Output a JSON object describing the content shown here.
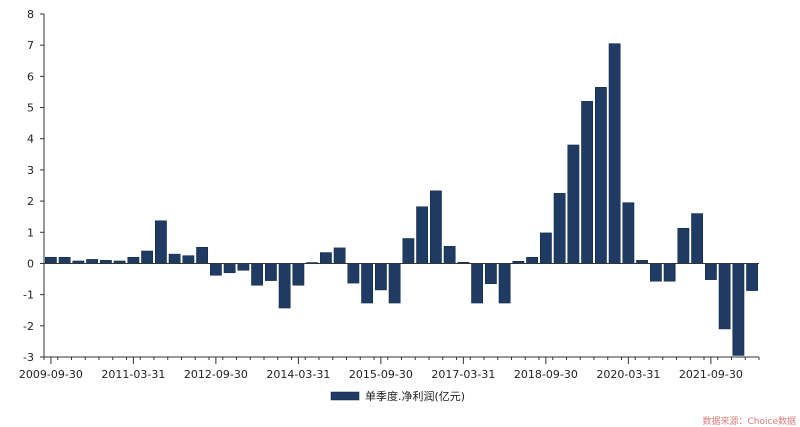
{
  "chart_data": {
    "type": "bar",
    "legend": "单季度.净利润(亿元)",
    "legend_position": "bottom-center",
    "source": "数据来源：Choice数据",
    "color": "#1f3b63",
    "ylim": [
      -3,
      8
    ],
    "yticks": [
      -3,
      -2,
      -1,
      0,
      1,
      2,
      3,
      4,
      5,
      6,
      7,
      8
    ],
    "xtick_labels": [
      "2009-09-30",
      "2011-03-31",
      "2012-09-30",
      "2014-03-31",
      "2015-09-30",
      "2017-03-31",
      "2018-09-30",
      "2020-03-31",
      "2021-09-30"
    ],
    "categories": [
      "2009-09-30",
      "2009-12-31",
      "2010-03-31",
      "2010-06-30",
      "2010-09-30",
      "2010-12-31",
      "2011-03-31",
      "2011-06-30",
      "2011-09-30",
      "2011-12-31",
      "2012-03-31",
      "2012-06-30",
      "2012-09-30",
      "2012-12-31",
      "2013-03-31",
      "2013-06-30",
      "2013-09-30",
      "2013-12-31",
      "2014-03-31",
      "2014-06-30",
      "2014-09-30",
      "2014-12-31",
      "2015-03-31",
      "2015-06-30",
      "2015-09-30",
      "2015-12-31",
      "2016-03-31",
      "2016-06-30",
      "2016-09-30",
      "2016-12-31",
      "2017-03-31",
      "2017-06-30",
      "2017-09-30",
      "2017-12-31",
      "2018-03-31",
      "2018-06-30",
      "2018-09-30",
      "2018-12-31",
      "2019-03-31",
      "2019-06-30",
      "2019-09-30",
      "2019-12-31",
      "2020-03-31",
      "2020-06-30",
      "2020-09-30",
      "2020-12-31",
      "2021-03-31",
      "2021-06-30",
      "2021-09-30",
      "2021-12-31",
      "2022-03-31",
      "2022-06-30"
    ],
    "values": [
      0.2,
      0.2,
      0.08,
      0.13,
      0.1,
      0.08,
      0.2,
      0.4,
      1.37,
      0.3,
      0.25,
      0.52,
      -0.38,
      -0.3,
      -0.22,
      -0.7,
      -0.55,
      -1.43,
      -0.7,
      0.03,
      0.35,
      0.5,
      -0.63,
      -1.27,
      -0.85,
      -1.27,
      0.8,
      1.82,
      2.33,
      0.55,
      0.04,
      -1.27,
      -0.65,
      -1.27,
      0.07,
      0.2,
      0.98,
      2.25,
      3.8,
      5.2,
      5.65,
      7.05,
      1.95,
      0.1,
      -0.57,
      -0.57,
      1.13,
      1.6,
      -0.52,
      -2.1,
      -2.95,
      -0.87
    ]
  }
}
